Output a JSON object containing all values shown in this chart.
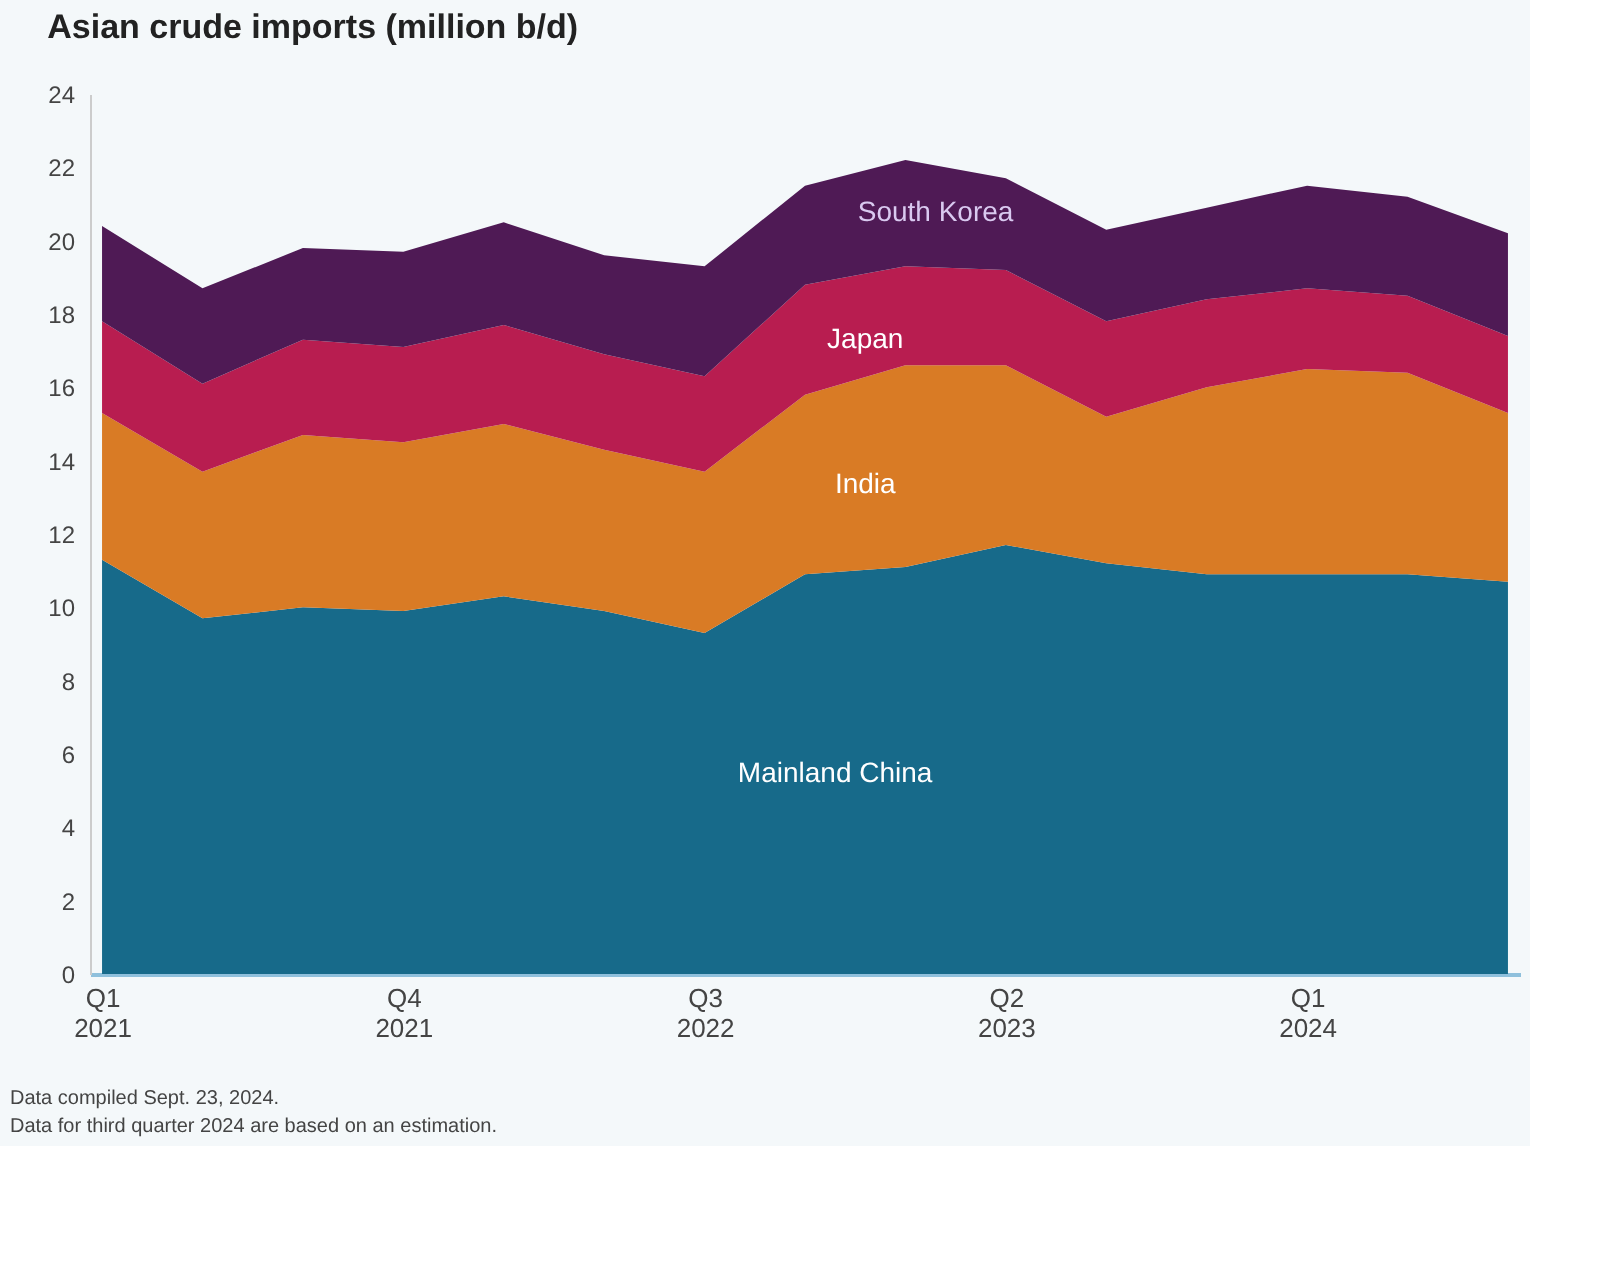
{
  "chart_data": {
    "type": "area",
    "stacked": true,
    "title": "Asian crude imports (million b/d)",
    "categories": [
      "Q1 2021",
      null,
      null,
      "Q4 2021",
      null,
      null,
      "Q3 2022",
      null,
      null,
      "Q2 2023",
      null,
      null,
      "Q1 2024",
      null,
      null
    ],
    "series": [
      {
        "name": "Mainland China",
        "color": "#176a8a",
        "values": [
          11.3,
          9.7,
          10.0,
          9.9,
          10.3,
          9.9,
          9.3,
          10.9,
          11.1,
          11.7,
          11.2,
          10.9,
          10.9,
          10.9,
          10.7
        ]
      },
      {
        "name": "India",
        "color": "#d97b25",
        "values": [
          4.0,
          4.0,
          4.7,
          4.6,
          4.7,
          4.4,
          4.4,
          4.9,
          5.5,
          4.9,
          4.0,
          5.1,
          5.6,
          5.5,
          4.6
        ]
      },
      {
        "name": "Japan",
        "color": "#b81d50",
        "values": [
          2.5,
          2.4,
          2.6,
          2.6,
          2.7,
          2.6,
          2.6,
          3.0,
          2.7,
          2.6,
          2.6,
          2.4,
          2.2,
          2.1,
          2.1
        ]
      },
      {
        "name": "South Korea",
        "color": "#4f1a55",
        "values": [
          2.6,
          2.6,
          2.5,
          2.6,
          2.8,
          2.7,
          3.0,
          2.7,
          2.9,
          2.5,
          2.5,
          2.5,
          2.8,
          2.7,
          2.8
        ]
      }
    ],
    "ylim": [
      0,
      24
    ],
    "yticks": [
      0,
      2,
      4,
      6,
      8,
      10,
      12,
      14,
      16,
      18,
      20,
      22,
      24
    ],
    "grid": false,
    "annotations": [
      "Data compiled Sept. 23, 2024.",
      "Data for third quarter 2024 are based on an estimation."
    ]
  }
}
